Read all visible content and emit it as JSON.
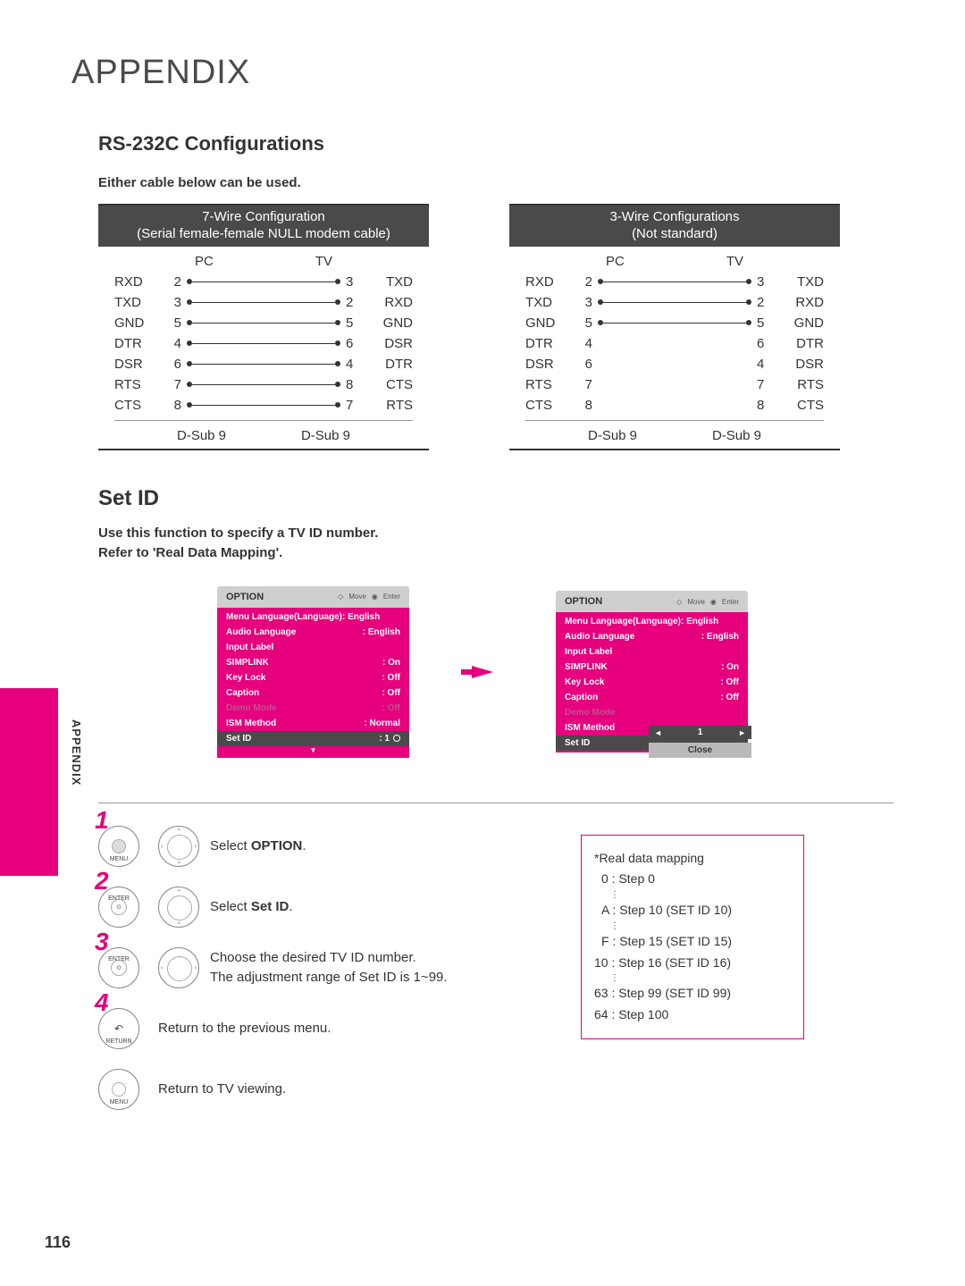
{
  "page_title": "APPENDIX",
  "section1_title": "RS-232C Configurations",
  "section1_note": "Either cable below can be used.",
  "cable_7wire": {
    "header_line1": "7-Wire Configuration",
    "header_line2": "(Serial female-female NULL modem cable)",
    "col_left": "PC",
    "col_right": "TV",
    "rows": [
      {
        "sl": "RXD",
        "pl": "2",
        "pr": "3",
        "sr": "TXD",
        "wire": true
      },
      {
        "sl": "TXD",
        "pl": "3",
        "pr": "2",
        "sr": "RXD",
        "wire": true
      },
      {
        "sl": "GND",
        "pl": "5",
        "pr": "5",
        "sr": "GND",
        "wire": true
      },
      {
        "sl": "DTR",
        "pl": "4",
        "pr": "6",
        "sr": "DSR",
        "wire": true
      },
      {
        "sl": "DSR",
        "pl": "6",
        "pr": "4",
        "sr": "DTR",
        "wire": true
      },
      {
        "sl": "RTS",
        "pl": "7",
        "pr": "8",
        "sr": "CTS",
        "wire": true
      },
      {
        "sl": "CTS",
        "pl": "8",
        "pr": "7",
        "sr": "RTS",
        "wire": true
      }
    ],
    "footer_l": "D-Sub 9",
    "footer_r": "D-Sub 9"
  },
  "cable_3wire": {
    "header_line1": "3-Wire Configurations",
    "header_line2": "(Not standard)",
    "col_left": "PC",
    "col_right": "TV",
    "rows": [
      {
        "sl": "RXD",
        "pl": "2",
        "pr": "3",
        "sr": "TXD",
        "wire": true
      },
      {
        "sl": "TXD",
        "pl": "3",
        "pr": "2",
        "sr": "RXD",
        "wire": true
      },
      {
        "sl": "GND",
        "pl": "5",
        "pr": "5",
        "sr": "GND",
        "wire": true
      },
      {
        "sl": "DTR",
        "pl": "4",
        "pr": "6",
        "sr": "DTR",
        "wire": false
      },
      {
        "sl": "DSR",
        "pl": "6",
        "pr": "4",
        "sr": "DSR",
        "wire": false
      },
      {
        "sl": "RTS",
        "pl": "7",
        "pr": "7",
        "sr": "RTS",
        "wire": false
      },
      {
        "sl": "CTS",
        "pl": "8",
        "pr": "8",
        "sr": "CTS",
        "wire": false
      }
    ],
    "footer_l": "D-Sub 9",
    "footer_r": "D-Sub 9"
  },
  "section2_title": "Set ID",
  "section2_note1": "Use this function to specify a TV ID number.",
  "section2_note2": "Refer to 'Real Data Mapping'.",
  "osd": {
    "title": "OPTION",
    "hdr_move": "Move",
    "hdr_enter": "Enter",
    "items": [
      {
        "label": "Menu Language(Language): English",
        "val": ""
      },
      {
        "label": "Audio Language",
        "val": ": English"
      },
      {
        "label": "Input Label",
        "val": ""
      },
      {
        "label": "SIMPLINK",
        "val": ": On"
      },
      {
        "label": "Key Lock",
        "val": ": Off"
      },
      {
        "label": "Caption",
        "val": ": Off"
      },
      {
        "label": "Demo Mode",
        "val": ": Off",
        "dim": true
      },
      {
        "label": "ISM Method",
        "val": ": Normal"
      },
      {
        "label": "Set ID",
        "val": ": 1",
        "sel": true,
        "radio": true
      }
    ],
    "items2": [
      {
        "label": "Menu Language(Language): English",
        "val": ""
      },
      {
        "label": "Audio Language",
        "val": ": English"
      },
      {
        "label": "Input Label",
        "val": ""
      },
      {
        "label": "SIMPLINK",
        "val": ": On"
      },
      {
        "label": "Key Lock",
        "val": ": Off"
      },
      {
        "label": "Caption",
        "val": ": Off"
      },
      {
        "label": "Demo Mode",
        "val": "",
        "dim": true
      },
      {
        "label": "ISM Method",
        "val": ""
      },
      {
        "label": "Set ID",
        "val": "",
        "sel": true
      }
    ],
    "spinner_val": "1",
    "spinner_close": "Close"
  },
  "steps": {
    "s1": "Select ",
    "s1b": "OPTION",
    "s1c": ".",
    "s2": "Select ",
    "s2b": "Set ID",
    "s2c": ".",
    "s3": "Choose the desired TV ID number.\nThe adjustment range of Set ID is 1~99.",
    "s4": "Return to the previous menu.",
    "s5": "Return to TV viewing.",
    "btn_menu": "MENU",
    "btn_enter": "ENTER",
    "btn_return": "RETURN"
  },
  "sidebar": {
    "title": "*Real data mapping",
    "l0": "0 : Step 0",
    "lA": "A : Step 10 (SET ID 10)",
    "lF": "F : Step 15 (SET ID 15)",
    "l10": "10 : Step 16 (SET ID 16)",
    "l63": "63 : Step 99 (SET ID 99)",
    "l64": "64 : Step 100"
  },
  "tab_text": "APPENDIX",
  "page_number": "116",
  "colors": {
    "accent": "#e6007e",
    "dark": "#4a4a4a"
  }
}
